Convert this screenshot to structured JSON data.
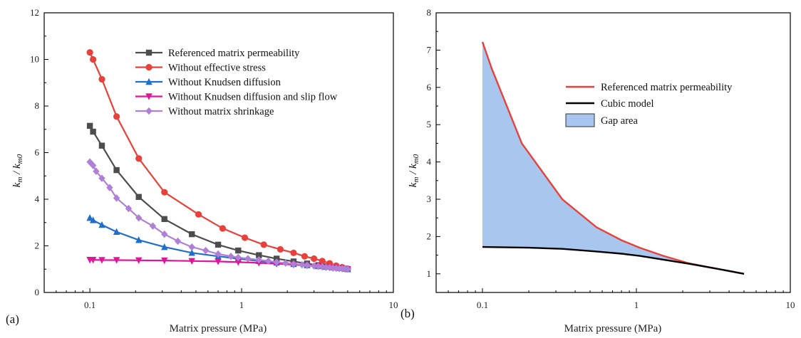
{
  "chart_data": [
    {
      "type": "line",
      "panel_label": "(a)",
      "xlabel": "Matrix pressure (MPa)",
      "ylabel": "km / km0",
      "xscale": "log",
      "xlim": [
        0.05,
        10
      ],
      "ylim": [
        0,
        12
      ],
      "xticks": [
        "0.1",
        "1",
        "10"
      ],
      "yticks": [
        "0",
        "2",
        "4",
        "6",
        "8",
        "10",
        "12"
      ],
      "legend_position": "top-right",
      "series": [
        {
          "name": "Referenced matrix permeability",
          "color": "#4d4d4d",
          "marker": "square",
          "x": [
            0.1,
            0.105,
            0.12,
            0.15,
            0.21,
            0.31,
            0.47,
            0.7,
            0.95,
            1.3,
            1.7,
            2.2,
            2.7,
            3.2,
            3.6,
            4.0,
            4.4,
            4.8,
            5.0
          ],
          "y": [
            7.15,
            6.9,
            6.3,
            5.25,
            4.1,
            3.15,
            2.5,
            2.05,
            1.8,
            1.6,
            1.45,
            1.33,
            1.24,
            1.17,
            1.12,
            1.08,
            1.05,
            1.02,
            1.0
          ]
        },
        {
          "name": "Without effective stress",
          "color": "#e8403a",
          "marker": "circle",
          "x": [
            0.1,
            0.105,
            0.12,
            0.15,
            0.21,
            0.31,
            0.52,
            0.75,
            1.05,
            1.4,
            1.8,
            2.2,
            2.6,
            3.0,
            3.4,
            3.8,
            4.2,
            4.6,
            5.0
          ],
          "y": [
            10.3,
            10.0,
            9.15,
            7.55,
            5.75,
            4.3,
            3.35,
            2.75,
            2.35,
            2.05,
            1.85,
            1.7,
            1.55,
            1.45,
            1.35,
            1.25,
            1.15,
            1.08,
            1.02
          ]
        },
        {
          "name": "Without Knudsen diffusion",
          "color": "#1f6fc9",
          "marker": "triangle-up",
          "x": [
            0.1,
            0.105,
            0.12,
            0.15,
            0.21,
            0.31,
            0.47,
            0.7,
            0.95,
            1.3,
            1.7,
            2.2,
            2.7,
            3.2,
            3.6,
            4.0,
            4.4,
            4.8,
            5.0
          ],
          "y": [
            3.2,
            3.1,
            2.9,
            2.6,
            2.25,
            1.95,
            1.7,
            1.55,
            1.45,
            1.35,
            1.28,
            1.22,
            1.17,
            1.13,
            1.1,
            1.07,
            1.05,
            1.02,
            1.0
          ]
        },
        {
          "name": "Without Knudsen diffusion and slip flow",
          "color": "#e0159a",
          "marker": "triangle-down",
          "x": [
            0.1,
            0.105,
            0.12,
            0.15,
            0.21,
            0.31,
            0.47,
            0.7,
            0.95,
            1.3,
            1.7,
            2.2,
            2.7,
            3.2,
            3.6,
            4.0,
            4.4,
            4.8,
            5.0
          ],
          "y": [
            1.4,
            1.4,
            1.39,
            1.39,
            1.38,
            1.37,
            1.35,
            1.33,
            1.3,
            1.27,
            1.23,
            1.19,
            1.15,
            1.12,
            1.09,
            1.06,
            1.04,
            1.02,
            1.0
          ]
        },
        {
          "name": "Without matrix shrinkage",
          "color": "#b07fd6",
          "marker": "diamond",
          "x": [
            0.1,
            0.105,
            0.11,
            0.12,
            0.135,
            0.15,
            0.18,
            0.21,
            0.26,
            0.31,
            0.38,
            0.47,
            0.58,
            0.7,
            0.85,
            0.95,
            1.1,
            1.3,
            1.5,
            1.7,
            1.95,
            2.2,
            2.5,
            2.7,
            3.0,
            3.2,
            3.4,
            3.6,
            3.8,
            4.0,
            4.2,
            4.4,
            4.6,
            4.8,
            5.0
          ],
          "y": [
            5.6,
            5.45,
            5.2,
            4.9,
            4.5,
            4.05,
            3.6,
            3.2,
            2.85,
            2.5,
            2.2,
            1.95,
            1.8,
            1.65,
            1.55,
            1.5,
            1.45,
            1.4,
            1.35,
            1.3,
            1.26,
            1.22,
            1.19,
            1.17,
            1.14,
            1.12,
            1.1,
            1.08,
            1.07,
            1.05,
            1.04,
            1.03,
            1.02,
            1.01,
            1.0
          ]
        }
      ]
    },
    {
      "type": "area",
      "panel_label": "(b)",
      "xlabel": "Matrix pressure (MPa)",
      "ylabel": "km / km0",
      "xscale": "log",
      "xlim": [
        0.05,
        10
      ],
      "ylim": [
        0.5,
        8
      ],
      "xticks": [
        "0.1",
        "1",
        "10"
      ],
      "yticks": [
        "1",
        "2",
        "3",
        "4",
        "5",
        "6",
        "7",
        "8"
      ],
      "legend_position": "top-right",
      "series": [
        {
          "name": "Referenced matrix permeability",
          "color": "#e8403a",
          "x": [
            0.1,
            0.115,
            0.18,
            0.33,
            0.55,
            0.8,
            1.05,
            1.5,
            2.2,
            3.2,
            5.0
          ],
          "y": [
            7.22,
            6.5,
            4.5,
            3.0,
            2.25,
            1.9,
            1.7,
            1.48,
            1.28,
            1.15,
            1.0
          ]
        },
        {
          "name": "Cubic model",
          "color": "#000000",
          "x": [
            0.1,
            0.2,
            0.33,
            0.55,
            0.8,
            1.05,
            1.5,
            2.2,
            3.2,
            5.0
          ],
          "y": [
            1.72,
            1.7,
            1.67,
            1.6,
            1.54,
            1.48,
            1.38,
            1.27,
            1.15,
            1.0
          ]
        }
      ],
      "area": {
        "name": "Gap area",
        "color": "#a9c6ef"
      }
    }
  ]
}
